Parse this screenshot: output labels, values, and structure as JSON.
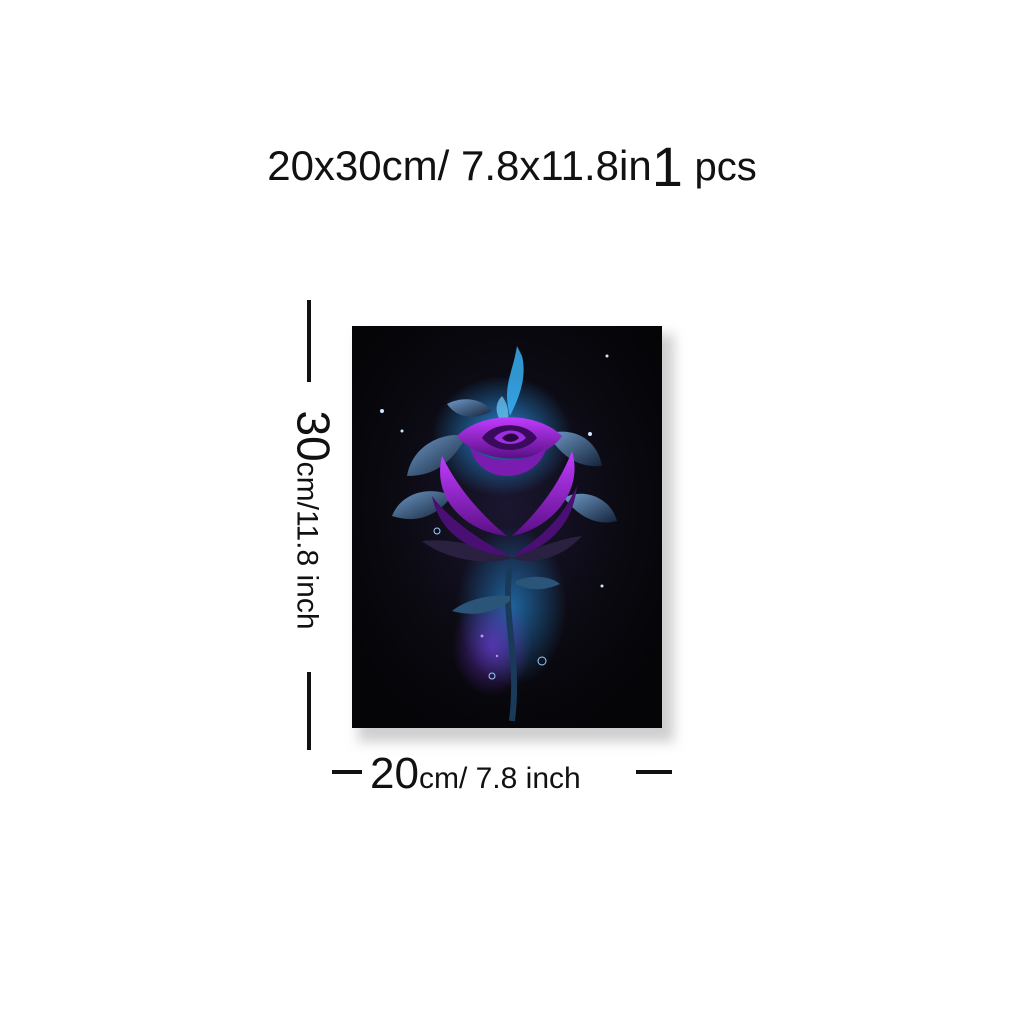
{
  "headline": {
    "size_text": "20x30cm/ 7.8x11.8in",
    "quantity_number": "1",
    "quantity_unit": "pcs"
  },
  "height_dimension": {
    "value": "30",
    "unit": "cm/11.8 inch"
  },
  "width_dimension": {
    "value": "20",
    "unit": "cm/ 7.8 inch"
  },
  "colors": {
    "petal": "#8a1fc4",
    "petal_highlight": "#c13cff",
    "leaf": "#1e3350",
    "glow": "#1f8fd6",
    "canvas_bg": "#07060a"
  }
}
